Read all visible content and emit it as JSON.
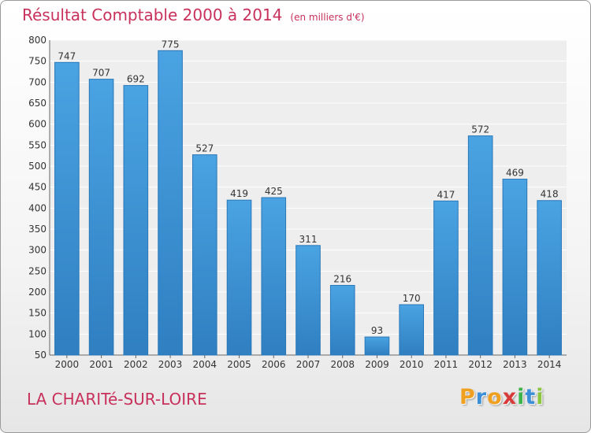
{
  "title": "Résultat Comptable 2000 à 2014",
  "subtitle": "(en milliers d'€)",
  "city": "LA CHARITé-SUR-LOIRE",
  "logo": {
    "letters": [
      "P",
      "r",
      "o",
      "x",
      "i",
      "t",
      "i"
    ],
    "colors": [
      "#f0a020",
      "#3b8fd8",
      "#f0a020",
      "#d83a3a",
      "#3bb54a",
      "#3b8fd8",
      "#8cc63f"
    ]
  },
  "colors": {
    "bar": "#4aa3e2",
    "bar_dark": "#2f7fc1",
    "text_accent": "#c8315c"
  },
  "chart_data": {
    "type": "bar",
    "categories": [
      "2000",
      "2001",
      "2002",
      "2003",
      "2004",
      "2005",
      "2006",
      "2007",
      "2008",
      "2009",
      "2010",
      "2011",
      "2012",
      "2013",
      "2014"
    ],
    "values": [
      747,
      707,
      692,
      775,
      527,
      419,
      425,
      311,
      216,
      93,
      170,
      417,
      572,
      469,
      418
    ],
    "ylim": [
      50,
      800
    ],
    "yticks": [
      50,
      100,
      150,
      200,
      250,
      300,
      350,
      400,
      450,
      500,
      550,
      600,
      650,
      700,
      750,
      800
    ],
    "grid": true
  }
}
